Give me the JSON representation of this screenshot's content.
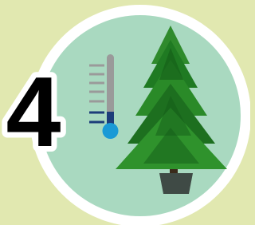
{
  "badge": {
    "number": "4"
  }
}
